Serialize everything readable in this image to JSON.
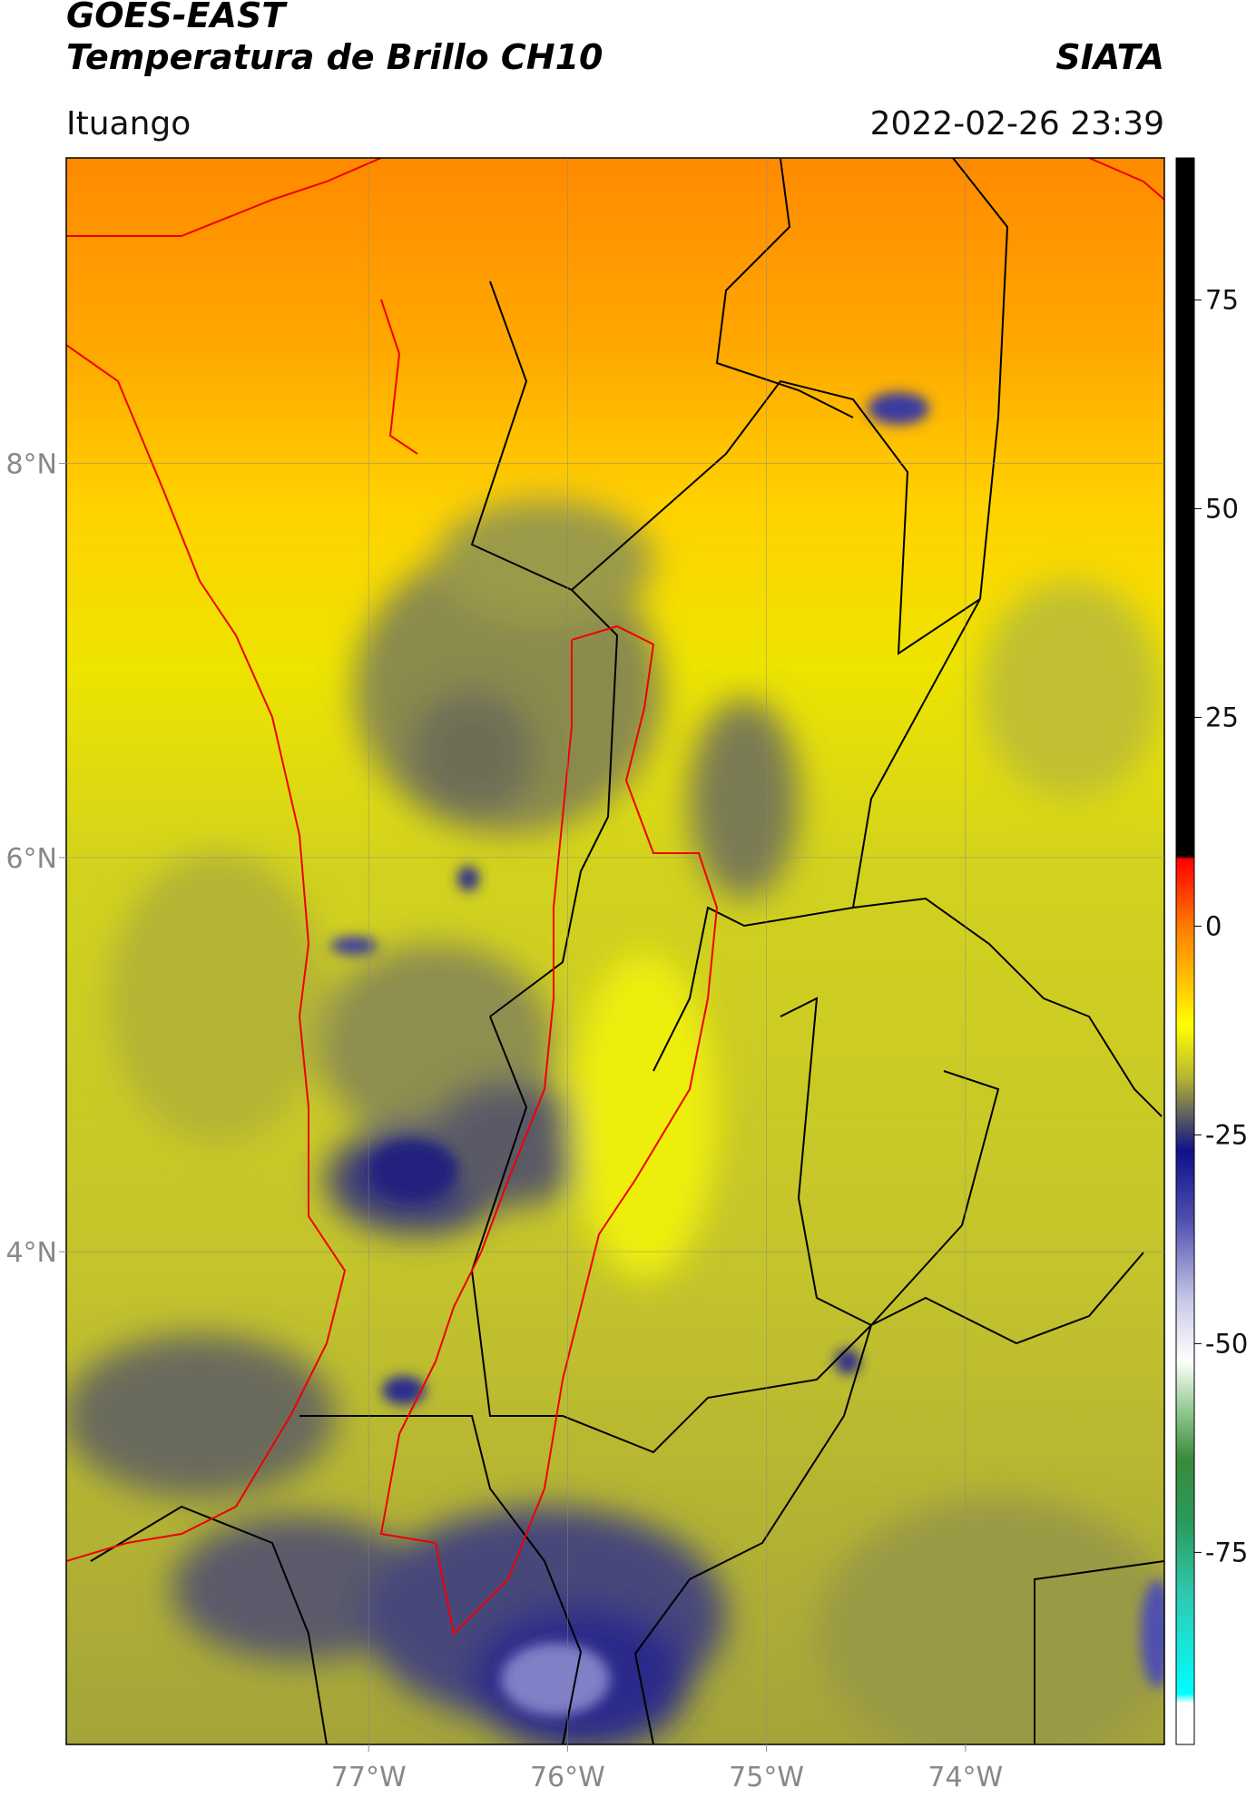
{
  "header": {
    "title": "GOES-EAST",
    "subtitle": "Temperatura de Brillo CH10",
    "agency": "SIATA",
    "location": "Ituango",
    "datetime": "2022-02-26 23:39"
  },
  "map": {
    "xlim": [
      -78.52,
      -73.0
    ],
    "ylim": [
      1.5,
      9.55
    ],
    "xticks": [
      {
        "value": -77,
        "label": "77°W"
      },
      {
        "value": -76,
        "label": "76°W"
      },
      {
        "value": -75,
        "label": "75°W"
      },
      {
        "value": -74,
        "label": "74°W"
      }
    ],
    "yticks": [
      {
        "value": 8,
        "label": "8°N"
      },
      {
        "value": 6,
        "label": "6°N"
      },
      {
        "value": 4,
        "label": "4°N"
      }
    ],
    "grid": true
  },
  "colorbar": {
    "lim": [
      -98,
      92
    ],
    "ticks": [
      -75,
      -50,
      -25,
      0,
      25,
      50,
      75
    ]
  }
}
